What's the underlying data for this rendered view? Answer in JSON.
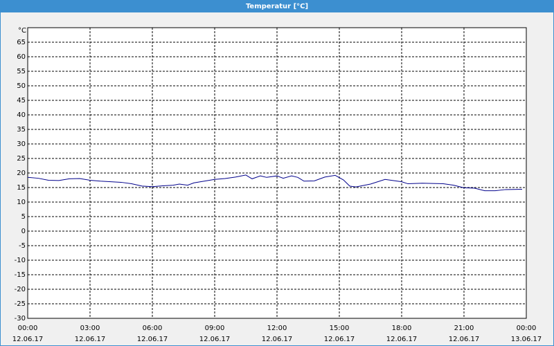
{
  "chart_data": {
    "type": "line",
    "title": "Temperatur [°C]",
    "y_label": "°C",
    "x": [
      0,
      0.5,
      1,
      1.5,
      2,
      2.5,
      3,
      3.5,
      4,
      4.5,
      5,
      5.5,
      6,
      6.5,
      7,
      7.3,
      7.7,
      8,
      8.5,
      9,
      9.5,
      10,
      10.5,
      10.8,
      11.2,
      11.5,
      12,
      12.3,
      12.7,
      13,
      13.3,
      13.8,
      14.3,
      14.8,
      15.2,
      15.5,
      15.8,
      16.5,
      17.2,
      18,
      18.3,
      19,
      19.5,
      20,
      20.5,
      21,
      21.5,
      22,
      22.5,
      23,
      23.8
    ],
    "series": [
      {
        "name": "Temperatur",
        "color": "#00008b",
        "values": [
          18.5,
          18.2,
          17.5,
          17.4,
          18.0,
          18.1,
          17.5,
          17.2,
          17.0,
          16.8,
          16.3,
          15.5,
          15.3,
          15.6,
          15.8,
          16.2,
          15.8,
          16.6,
          17.2,
          17.8,
          18.1,
          18.6,
          19.3,
          18.0,
          19.0,
          18.5,
          19.0,
          18.2,
          19.0,
          18.5,
          17.2,
          17.3,
          18.6,
          19.2,
          17.6,
          15.5,
          15.2,
          16.2,
          17.8,
          17.0,
          16.3,
          16.5,
          16.4,
          16.3,
          15.8,
          14.9,
          14.8,
          13.9,
          13.9,
          14.3,
          14.4
        ]
      }
    ],
    "xlim": [
      0,
      24
    ],
    "ylim": [
      -30,
      70
    ],
    "xticks": [
      {
        "value": 0,
        "label": "00:00"
      },
      {
        "value": 3,
        "label": "03:00"
      },
      {
        "value": 6,
        "label": "06:00"
      },
      {
        "value": 9,
        "label": "09:00"
      },
      {
        "value": 12,
        "label": "12:00"
      },
      {
        "value": 15,
        "label": "15:00"
      },
      {
        "value": 18,
        "label": "18:00"
      },
      {
        "value": 21,
        "label": "21:00"
      },
      {
        "value": 24,
        "label": "00:00"
      }
    ],
    "xtick_dates": [
      "12.06.17",
      "12.06.17",
      "12.06.17",
      "12.06.17",
      "12.06.17",
      "12.06.17",
      "12.06.17",
      "12.06.17",
      "13.06.17"
    ],
    "yticks": [
      -30,
      -25,
      -20,
      -15,
      -10,
      -5,
      0,
      5,
      10,
      15,
      20,
      25,
      30,
      35,
      40,
      45,
      50,
      55,
      60,
      65
    ],
    "grid": true
  }
}
